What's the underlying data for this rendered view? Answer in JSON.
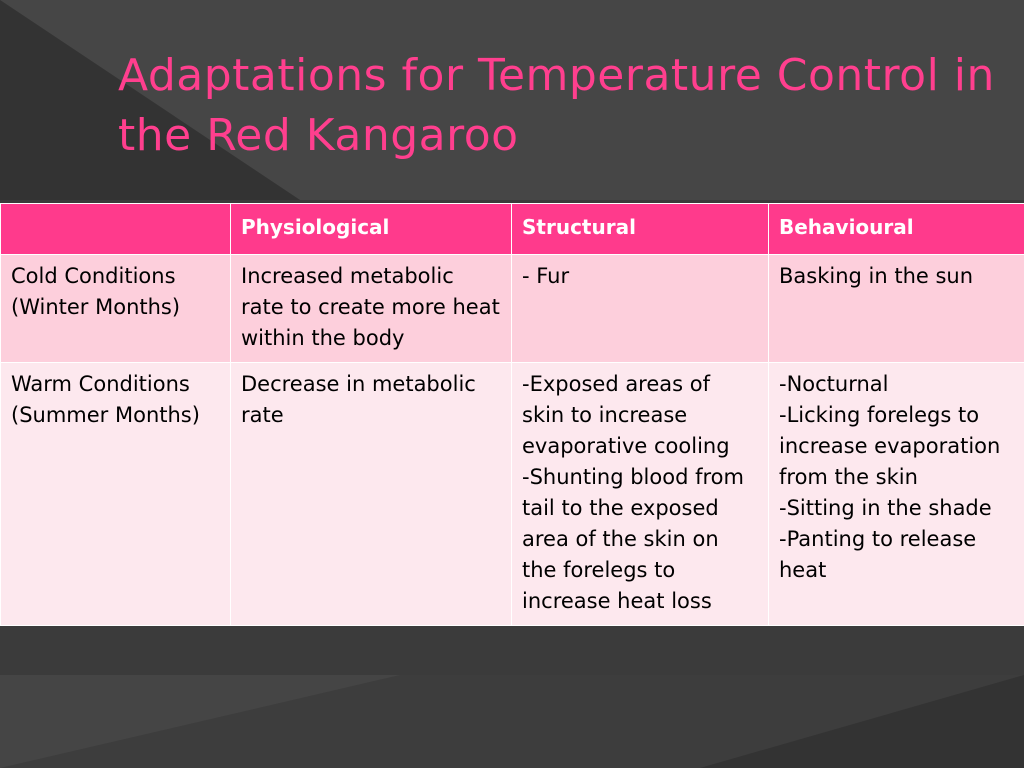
{
  "slide": {
    "title": "Adaptations for Temperature Control in the Red Kangaroo",
    "colors": {
      "title": "#ff3f8e",
      "header_bg": "#ff3a8c",
      "row_cold_bg": "#fdcfdc",
      "row_warm_bg": "#fde8ee",
      "background": "#3a3a3a"
    }
  },
  "table": {
    "headers": [
      "",
      "Physiological",
      "Structural",
      "Behavioural"
    ],
    "rows": [
      {
        "condition": "Cold Conditions\n(Winter Months)",
        "physiological": "Increased metabolic rate to create more heat within the body",
        "structural": "- Fur",
        "behavioural": "Basking in the sun"
      },
      {
        "condition": "Warm Conditions (Summer Months)",
        "physiological": "Decrease in metabolic rate",
        "structural": "-Exposed areas of skin to increase evaporative cooling\n-Shunting blood from tail to the exposed area of the skin on the forelegs to increase heat loss",
        "behavioural": "-Nocturnal\n-Licking forelegs to increase evaporation from the skin\n-Sitting in the shade\n-Panting to release heat"
      }
    ]
  }
}
